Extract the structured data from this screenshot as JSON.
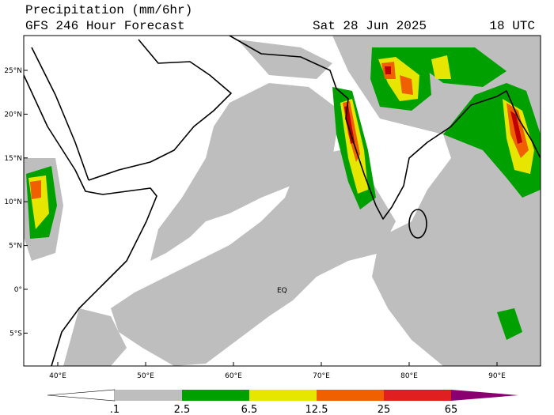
{
  "header": {
    "title": "Precipitation (mm/6hr)",
    "subtitle": "GFS 246 Hour Forecast",
    "date": "Sat 28 Jun 2025",
    "time": "18 UTC"
  },
  "map": {
    "lat_labels": [
      "25°N",
      "20°N",
      "15°N",
      "10°N",
      "5°N",
      "0°",
      "5°S"
    ],
    "lon_labels": [
      "40°E",
      "50°E",
      "60°E",
      "70°E",
      "80°E",
      "90°E"
    ],
    "annotation": "EQ"
  },
  "colorbar": {
    "labels": [
      ".1",
      "2.5",
      "6.5",
      "12.5",
      "25",
      "65"
    ]
  }
}
